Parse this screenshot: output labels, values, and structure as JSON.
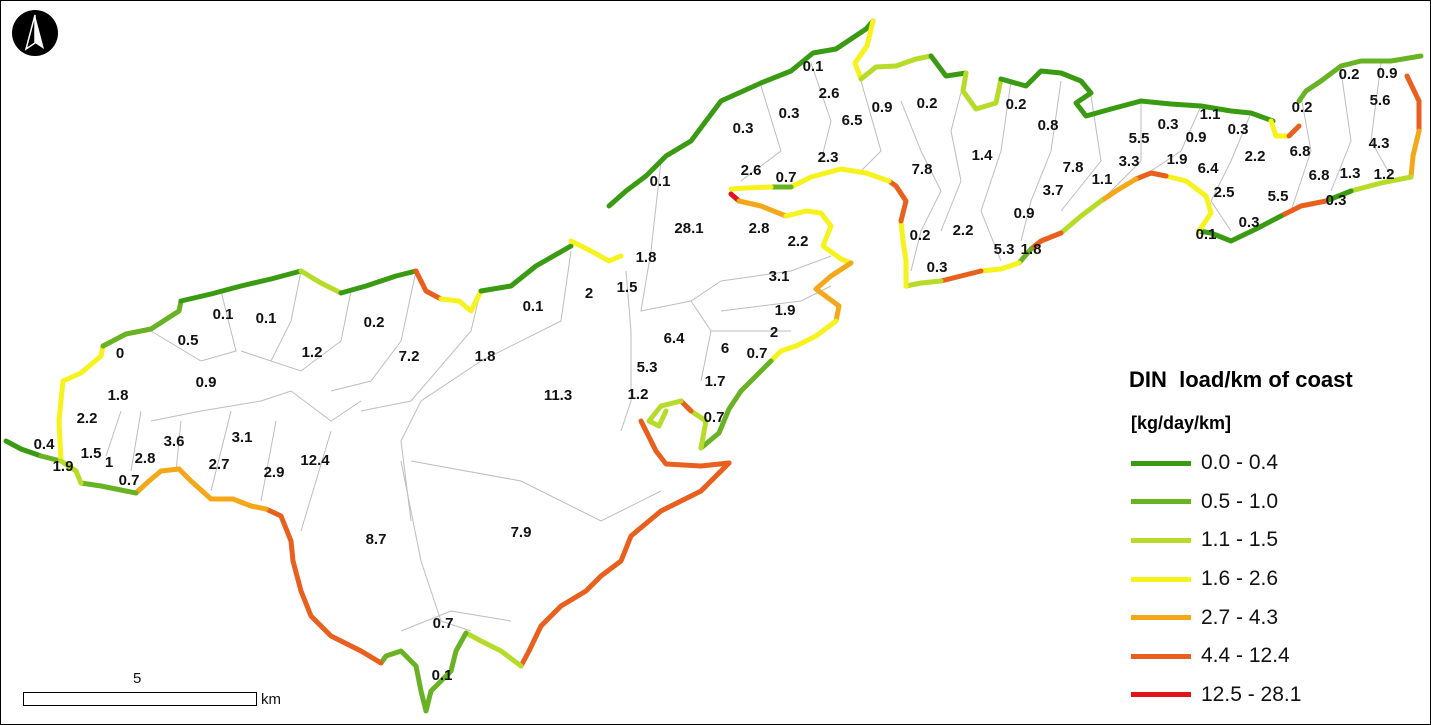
{
  "legend": {
    "title": "DIN  load/km of coast",
    "unit": "[kg/day/km]",
    "classes": [
      {
        "label": "0.0 - 0.4",
        "color": "#3a9a12"
      },
      {
        "label": "0.5 - 1.0",
        "color": "#69b224"
      },
      {
        "label": "1.1 - 1.5",
        "color": "#b6dc29"
      },
      {
        "label": "1.6 - 2.6",
        "color": "#f6f21c"
      },
      {
        "label": "2.7 - 4.3",
        "color": "#f3a719"
      },
      {
        "label": "4.4 - 12.4",
        "color": "#e85f1e"
      },
      {
        "label": "12.5 - 28.1",
        "color": "#e0141a"
      }
    ]
  },
  "scale": {
    "value": "5",
    "unit": "km"
  },
  "catchment_labels": [
    "0.1",
    "2.6",
    "0.3",
    "0.3",
    "6.5",
    "0.9",
    "0.2",
    "0.2",
    "0.8",
    "1.1",
    "0.2",
    "0.9",
    "5.6",
    "0.2",
    "1.4",
    "7.8",
    "2.6",
    "0.7",
    "2.3",
    "0.1",
    "28.1",
    "2.8",
    "2.2",
    "1.8",
    "2",
    "1.5",
    "0.1",
    "0.1",
    "0.1",
    "0.2",
    "1.2",
    "0.5",
    "0",
    "7.2",
    "1.8",
    "0.9",
    "1.8",
    "3.1",
    "1.9",
    "2",
    "6.4",
    "6",
    "0.7",
    "5.3",
    "1.7",
    "11.3",
    "1.2",
    "0.7",
    "2.2",
    "0.4",
    "1.5",
    "1",
    "2.8",
    "3.6",
    "3.1",
    "2.7",
    "2.9",
    "12.4",
    "1.9",
    "0.7",
    "8.7",
    "7.9",
    "0.7",
    "0.1",
    "5.5",
    "0.3",
    "0.9",
    "0.3",
    "3.3",
    "1.9",
    "6.4",
    "2.2",
    "6.8",
    "4.3",
    "7.8",
    "1.1",
    "3.7",
    "2.5",
    "6.8",
    "1.3",
    "1.2",
    "0.9",
    "5.5",
    "0.3",
    "0.3",
    "0.1",
    "0.2",
    "2.2",
    "5.3",
    "1.8",
    "0.3",
    "1.2"
  ]
}
